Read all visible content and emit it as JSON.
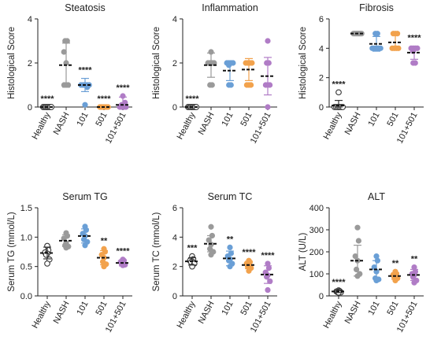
{
  "colors": {
    "healthy": "#333333",
    "nash": "#9a9a9a",
    "g101": "#6a9fd6",
    "g501": "#f2a24c",
    "g101_501": "#b07cc6"
  },
  "categories": [
    "Healthy",
    "NASH",
    "101",
    "501",
    "101+501"
  ],
  "chart_data": [
    {
      "type": "scatter",
      "title": "Steatosis",
      "ylabel": "Histological Score",
      "ylim": [
        0,
        4
      ],
      "yticks": [
        "0",
        "2",
        "4"
      ],
      "ytick_values": [
        0,
        2,
        4
      ],
      "reference_line": 0,
      "categories": [
        "Healthy",
        "NASH",
        "101",
        "501",
        "101+501"
      ],
      "series": [
        {
          "mean": 0,
          "sd": 0,
          "points": [
            0,
            0,
            0,
            0,
            0,
            0,
            0
          ],
          "sig": "****"
        },
        {
          "mean": 1.9,
          "sd": 1.0,
          "points": [
            3,
            3,
            2.5,
            2,
            1,
            1,
            1
          ],
          "sig": ""
        },
        {
          "mean": 1.0,
          "sd": 0.3,
          "points": [
            1,
            1,
            1,
            1,
            1,
            0.9,
            0.1
          ],
          "sig": "****"
        },
        {
          "mean": 0,
          "sd": 0,
          "points": [
            0,
            0,
            0,
            0,
            0,
            0,
            0
          ],
          "sig": "****"
        },
        {
          "mean": 0.1,
          "sd": 0.35,
          "points": [
            0,
            0,
            0,
            0,
            0.1,
            0.2,
            0.5
          ],
          "sig": "****"
        }
      ]
    },
    {
      "type": "scatter",
      "title": "Inflammation",
      "ylabel": "Histological Score",
      "ylim": [
        0,
        4
      ],
      "yticks": [
        "0",
        "2",
        "4"
      ],
      "ytick_values": [
        0,
        2,
        4
      ],
      "reference_line": 0,
      "categories": [
        "Healthy",
        "NASH",
        "101",
        "501",
        "101+501"
      ],
      "series": [
        {
          "mean": 0,
          "sd": 0,
          "points": [
            0,
            0,
            0,
            0,
            0,
            0,
            0
          ],
          "sig": "****"
        },
        {
          "mean": 1.9,
          "sd": 0.55,
          "points": [
            2.5,
            2,
            2,
            2,
            2,
            1,
            1
          ],
          "sig": ""
        },
        {
          "mean": 1.65,
          "sd": 0.45,
          "points": [
            2,
            2,
            2,
            2,
            1.9,
            1,
            1
          ],
          "sig": ""
        },
        {
          "mean": 1.7,
          "sd": 0.5,
          "points": [
            2,
            2,
            2,
            2,
            1,
            1,
            1
          ],
          "sig": ""
        },
        {
          "mean": 1.4,
          "sd": 0.85,
          "points": [
            3,
            2,
            2,
            1,
            1,
            1,
            0
          ],
          "sig": ""
        }
      ]
    },
    {
      "type": "scatter",
      "title": "Fibrosis",
      "ylabel": "Histological Score",
      "ylim": [
        0,
        6
      ],
      "yticks": [
        "0",
        "2",
        "4",
        "6"
      ],
      "ytick_values": [
        0,
        2,
        4,
        6
      ],
      "reference_line": 0,
      "categories": [
        "Healthy",
        "NASH",
        "101",
        "501",
        "101+501"
      ],
      "series": [
        {
          "mean": 0.1,
          "sd": 0.35,
          "points": [
            1,
            0,
            0,
            0,
            0,
            0,
            0
          ],
          "sig": "****"
        },
        {
          "mean": 5,
          "sd": 0,
          "points": [
            5,
            5,
            5,
            5,
            5,
            5,
            5
          ],
          "sig": ""
        },
        {
          "mean": 4.3,
          "sd": 0.5,
          "points": [
            5,
            5,
            4,
            4,
            4,
            4,
            4
          ],
          "sig": ""
        },
        {
          "mean": 4.4,
          "sd": 0.5,
          "points": [
            5,
            5,
            5,
            4,
            4,
            4,
            4
          ],
          "sig": ""
        },
        {
          "mean": 3.7,
          "sd": 0.45,
          "points": [
            4,
            4,
            4,
            4,
            3.8,
            3,
            3
          ],
          "sig": "****"
        }
      ]
    },
    {
      "type": "scatter",
      "title": "Serum TG",
      "ylabel": "Serum TG (mmol/L)",
      "ylim": [
        0,
        1.5
      ],
      "yticks": [
        "0.0",
        "0.5",
        "1.0",
        "1.5"
      ],
      "ytick_values": [
        0,
        0.5,
        1.0,
        1.5
      ],
      "reference_line": null,
      "categories": [
        "Healthy",
        "NASH",
        "101",
        "501",
        "101+501"
      ],
      "series": [
        {
          "mean": 0.73,
          "sd": 0.1,
          "points": [
            0.85,
            0.78,
            0.74,
            0.72,
            0.7,
            0.62,
            0.55
          ],
          "sig": ""
        },
        {
          "mean": 0.94,
          "sd": 0.1,
          "points": [
            1.07,
            1.02,
            0.98,
            0.9,
            0.86,
            0.84,
            0.82
          ],
          "sig": ""
        },
        {
          "mean": 1.02,
          "sd": 0.12,
          "points": [
            1.18,
            1.12,
            1.06,
            1.02,
            0.96,
            0.92,
            0.86
          ],
          "sig": ""
        },
        {
          "mean": 0.65,
          "sd": 0.12,
          "points": [
            0.8,
            0.75,
            0.7,
            0.65,
            0.58,
            0.54,
            0.5
          ],
          "sig": "**"
        },
        {
          "mean": 0.56,
          "sd": 0.05,
          "points": [
            0.62,
            0.6,
            0.58,
            0.56,
            0.54,
            0.53,
            0.52
          ],
          "sig": "****"
        }
      ]
    },
    {
      "type": "scatter",
      "title": "Serum TC",
      "ylabel": "Serum  TC (mmol/L)",
      "ylim": [
        0,
        6
      ],
      "yticks": [
        "0",
        "2",
        "4",
        "6"
      ],
      "ytick_values": [
        0,
        2,
        4,
        6
      ],
      "reference_line": null,
      "categories": [
        "Healthy",
        "NASH",
        "101",
        "501",
        "101+501"
      ],
      "series": [
        {
          "mean": 2.35,
          "sd": 0.25,
          "points": [
            2.7,
            2.5,
            2.4,
            2.35,
            2.3,
            2.2,
            2.0
          ],
          "sig": "***"
        },
        {
          "mean": 3.55,
          "sd": 0.55,
          "points": [
            4.7,
            4.1,
            3.8,
            3.5,
            3.2,
            3.0,
            2.8
          ],
          "sig": ""
        },
        {
          "mean": 2.55,
          "sd": 0.5,
          "points": [
            3.3,
            2.9,
            2.7,
            2.5,
            2.4,
            2.2,
            2.0
          ],
          "sig": "**"
        },
        {
          "mean": 2.1,
          "sd": 0.25,
          "points": [
            2.4,
            2.3,
            2.2,
            2.1,
            2.0,
            1.9,
            1.7
          ],
          "sig": "****"
        },
        {
          "mean": 1.45,
          "sd": 0.6,
          "points": [
            2.2,
            1.9,
            1.6,
            1.4,
            1.3,
            1.0,
            0.4
          ],
          "sig": "****"
        }
      ]
    },
    {
      "type": "scatter",
      "title": "ALT",
      "ylabel": "ALT (U/L)",
      "ylim": [
        0,
        400
      ],
      "yticks": [
        "0",
        "100",
        "200",
        "300",
        "400"
      ],
      "ytick_values": [
        0,
        100,
        200,
        300,
        400
      ],
      "reference_line": null,
      "categories": [
        "Healthy",
        "NASH",
        "101",
        "501",
        "101+501"
      ],
      "series": [
        {
          "mean": 20,
          "sd": 5,
          "points": [
            25,
            22,
            20,
            18,
            17,
            16,
            15
          ],
          "sig": "****"
        },
        {
          "mean": 160,
          "sd": 70,
          "points": [
            310,
            250,
            180,
            160,
            120,
            100,
            90
          ],
          "sig": ""
        },
        {
          "mean": 120,
          "sd": 40,
          "points": [
            180,
            160,
            130,
            110,
            80,
            75,
            70
          ],
          "sig": ""
        },
        {
          "mean": 90,
          "sd": 15,
          "points": [
            110,
            100,
            95,
            90,
            85,
            80,
            70
          ],
          "sig": "**"
        },
        {
          "mean": 95,
          "sd": 25,
          "points": [
            130,
            110,
            100,
            95,
            85,
            70,
            60
          ],
          "sig": "**"
        }
      ]
    }
  ]
}
